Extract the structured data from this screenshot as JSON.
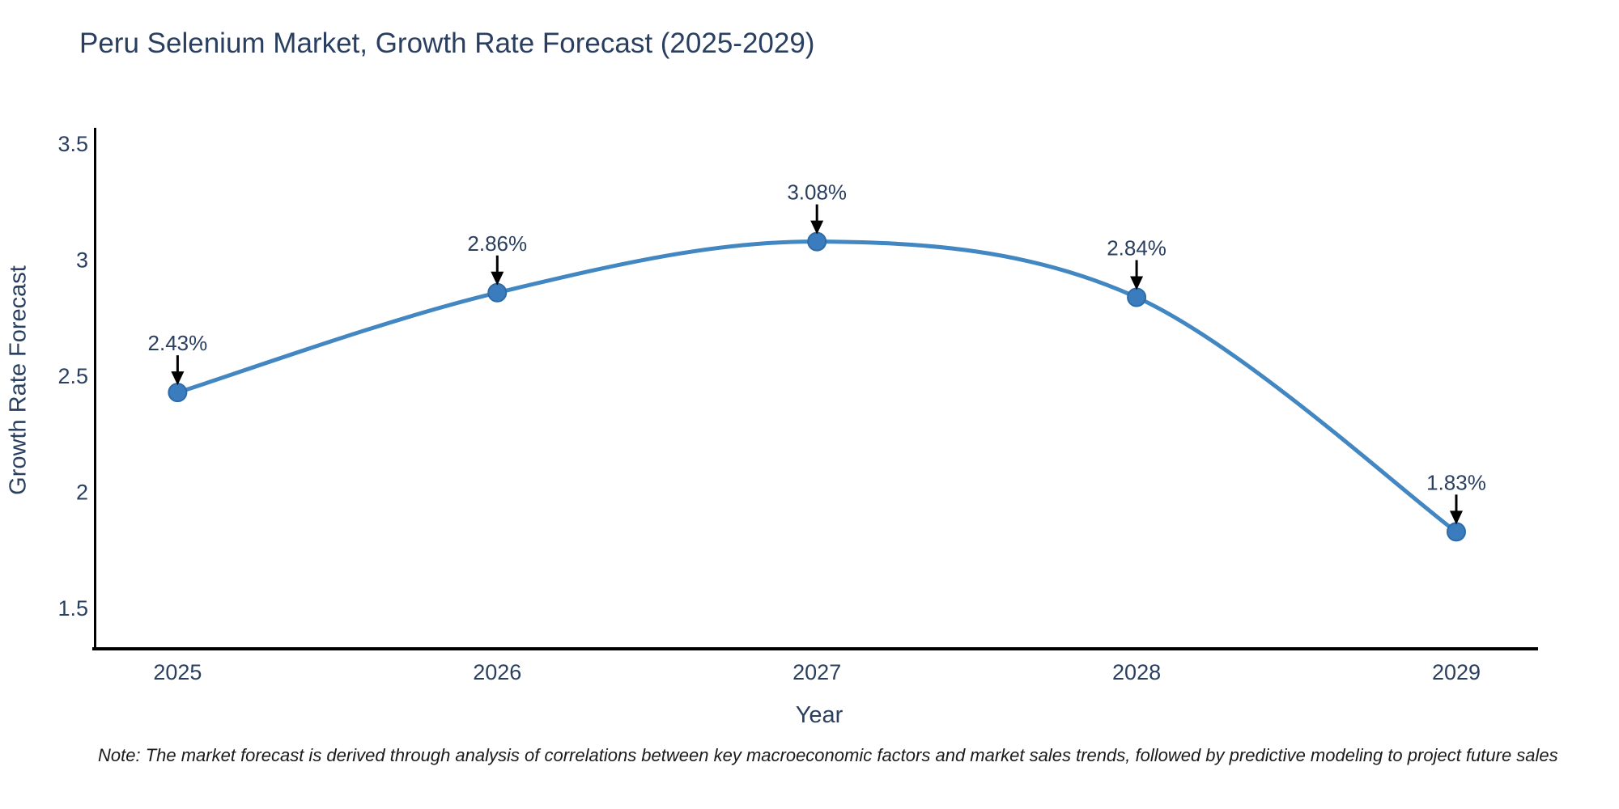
{
  "page": {
    "background": "#ffffff"
  },
  "chart": {
    "title": "Peru Selenium Market, Growth Rate Forecast (2025-2029)",
    "note": "Note: The market forecast is derived through analysis of correlations between key macroeconomic factors and market sales trends, followed by predictive modeling to project future sales"
  },
  "chart_data": {
    "type": "line",
    "title": "Peru Selenium Market, Growth Rate Forecast (2025-2029)",
    "xlabel": "Year",
    "ylabel": "Growth Rate Forecast",
    "x": [
      2025,
      2026,
      2027,
      2028,
      2029
    ],
    "xtick_labels": [
      "2025",
      "2026",
      "2027",
      "2028",
      "2029"
    ],
    "series": [
      {
        "name": "Growth Rate Forecast",
        "values": [
          2.43,
          2.86,
          3.08,
          2.84,
          1.83
        ]
      }
    ],
    "point_labels": [
      "2.43%",
      "2.86%",
      "3.08%",
      "2.84%",
      "1.83%"
    ],
    "yticks": [
      1.5,
      2,
      2.5,
      3,
      3.5
    ],
    "ytick_labels": [
      "1.5",
      "2",
      "2.5",
      "3",
      "3.5"
    ],
    "xlim": [
      2024.742,
      2029.271
    ],
    "ylim": [
      1.326,
      3.57
    ],
    "grid": false,
    "legend": "none",
    "line_shape": "spline",
    "annotation_arrows": true,
    "colors": {
      "line": "#4287c1",
      "marker": "#3a7cbe",
      "marker_edge": "#2f6ba6",
      "annotation_arrow": "#000000",
      "axis_line": "#000000",
      "text": "#2a3f5f",
      "title": "#2a3f5f",
      "note_text": "#1a1a1a"
    }
  }
}
